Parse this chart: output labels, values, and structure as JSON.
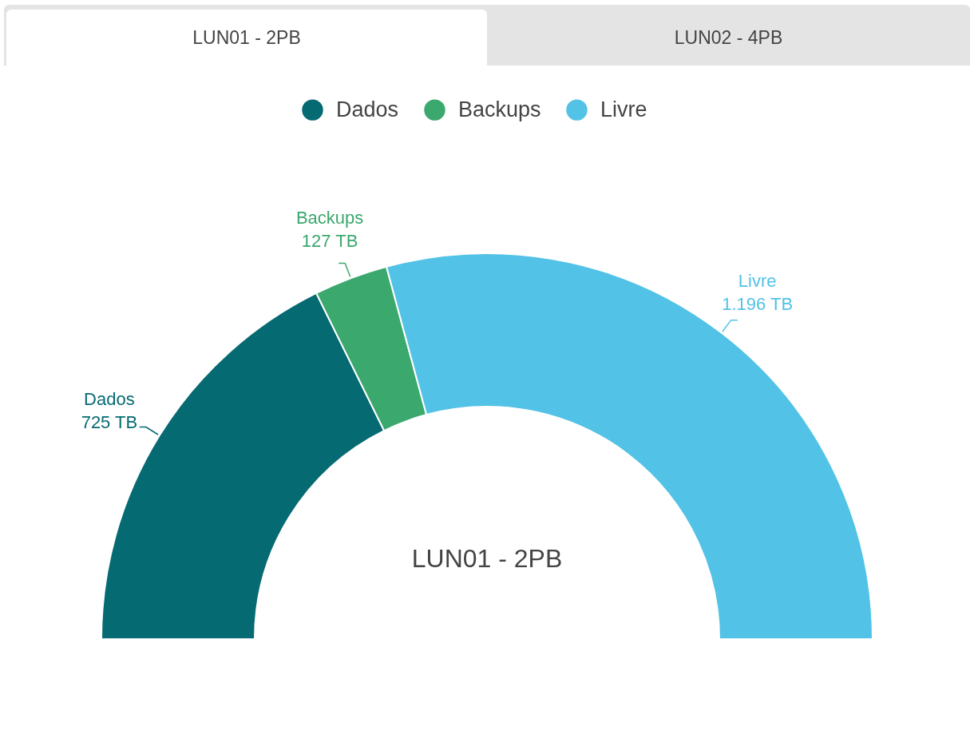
{
  "chart_data": {
    "type": "donut",
    "title": "LUN01 - 2PB",
    "annotations": [
      "LUN01 - 2PB",
      "LUN02 - 4PB"
    ],
    "categories": [
      "Dados",
      "Backups",
      "Livre"
    ],
    "values": [
      725,
      127,
      1196
    ],
    "value_labels": [
      "725 TB",
      "127 TB",
      "1.196 TB"
    ],
    "colors": [
      "#066a73",
      "#3ba86d",
      "#52c2e6"
    ],
    "legend": "top"
  }
}
